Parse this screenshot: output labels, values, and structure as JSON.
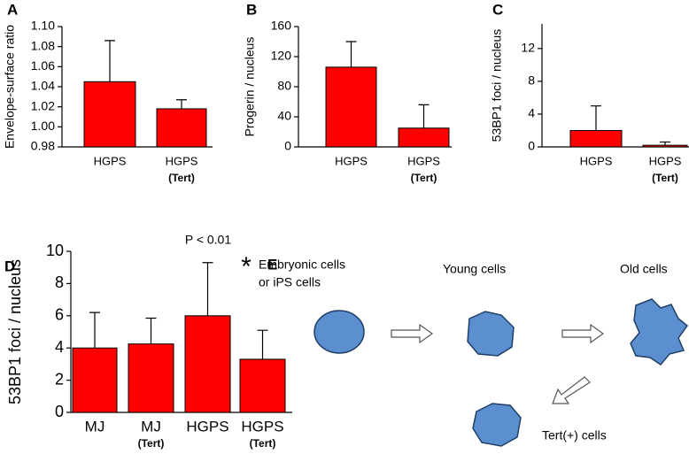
{
  "chart_data": [
    {
      "type": "bar",
      "label": "A",
      "y_label": "Envelope-surface ratio",
      "categories": [
        "HGPS",
        "HGPS"
      ],
      "subcategories": [
        null,
        "(Tert)"
      ],
      "values": [
        1.045,
        1.018
      ],
      "errors": [
        0.041,
        0.009
      ],
      "color": "#ff0000",
      "ylim": [
        0.98,
        1.1
      ],
      "yticks": [
        0.98,
        {
          "value": 1,
          "label": "1.00"
        },
        1.02,
        1.04,
        1.06,
        1.08,
        {
          "value": 1.1,
          "label": "1.10"
        }
      ]
    },
    {
      "type": "bar",
      "label": "B",
      "y_label": "Progerin / nucleus",
      "categories": [
        "HGPS",
        "HGPS"
      ],
      "subcategories": [
        null,
        "(Tert)"
      ],
      "values": [
        106,
        25
      ],
      "errors": [
        34,
        31
      ],
      "color": "#ff0000",
      "ylim": [
        0,
        160
      ],
      "yticks": [
        0,
        40,
        80,
        120,
        160
      ]
    },
    {
      "type": "bar",
      "label": "C",
      "y_label": "53BP1 foci / nucleus",
      "categories": [
        "HGPS",
        "HGPS"
      ],
      "subcategories": [
        null,
        "(Tert)"
      ],
      "values": [
        2,
        0.2
      ],
      "errors": [
        3,
        0.4
      ],
      "color": "#ff0000",
      "ylim": [
        0,
        15
      ],
      "yticks": [
        0,
        4,
        8,
        12
      ]
    },
    {
      "type": "bar",
      "label": "D",
      "y_label": "53BP1 foci / nucleus",
      "categories": [
        "MJ",
        "MJ",
        "HGPS",
        "HGPS"
      ],
      "subcategories": [
        null,
        "(Tert)",
        null,
        "(Tert)"
      ],
      "values": [
        4.0,
        4.25,
        6.0,
        3.3
      ],
      "errors": [
        2.2,
        1.6,
        3.3,
        1.8
      ],
      "color": "#ff0000",
      "ylim": [
        0,
        10
      ],
      "yticks": [
        0,
        2,
        4,
        6,
        8,
        10
      ],
      "annotations": [
        "P < 0.01",
        "*"
      ]
    }
  ],
  "diagram": {
    "label": "E",
    "nodes": [
      {
        "label": [
          "Embryonic cells",
          "or iPS cells"
        ]
      },
      {
        "label": [
          "Young cells"
        ]
      },
      {
        "label": [
          "Old cells"
        ]
      },
      {
        "label": [
          "Tert(+) cells"
        ]
      }
    ]
  }
}
